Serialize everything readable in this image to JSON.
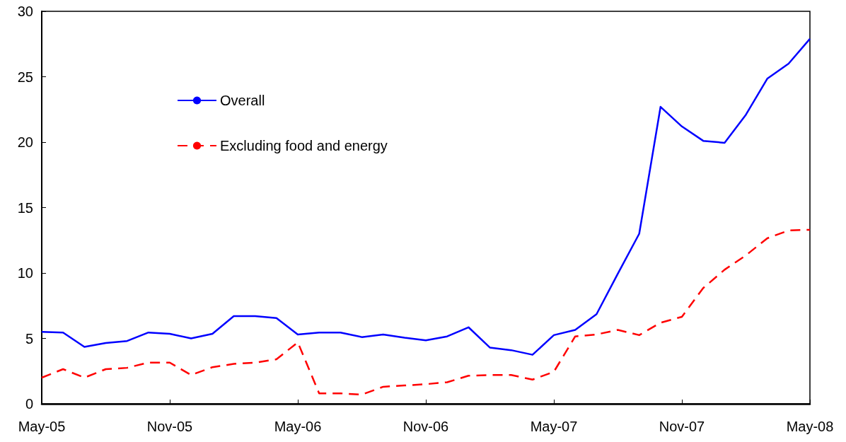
{
  "chart_data": {
    "type": "line",
    "categories": [
      "May-05",
      null,
      null,
      null,
      null,
      null,
      "Nov-05",
      null,
      null,
      null,
      null,
      null,
      "May-06",
      null,
      null,
      null,
      null,
      null,
      "Nov-06",
      null,
      null,
      null,
      null,
      null,
      "May-07",
      null,
      null,
      null,
      null,
      null,
      "Nov-07",
      null,
      null,
      null,
      null,
      null,
      "May-08"
    ],
    "series": [
      {
        "name": "Overall",
        "color": "#0000ff",
        "line_style": "solid",
        "values": [
          5.5,
          5.45,
          4.35,
          4.65,
          4.8,
          5.45,
          5.35,
          5.0,
          5.35,
          6.7,
          6.7,
          6.55,
          5.3,
          5.45,
          5.45,
          5.1,
          5.3,
          5.05,
          4.85,
          5.15,
          5.85,
          4.3,
          4.1,
          3.75,
          5.25,
          5.65,
          6.85,
          9.95,
          13.0,
          22.7,
          21.2,
          20.1,
          19.95,
          22.1,
          24.85,
          26.0,
          27.9
        ]
      },
      {
        "name": "Excluding food and energy",
        "color": "#ff0000",
        "line_style": "dashed",
        "values": [
          2.0,
          2.65,
          2.0,
          2.65,
          2.75,
          3.15,
          3.15,
          2.2,
          2.8,
          3.05,
          3.15,
          3.4,
          4.7,
          0.8,
          0.8,
          0.7,
          1.3,
          1.4,
          1.5,
          1.65,
          2.15,
          2.2,
          2.2,
          1.85,
          2.45,
          5.15,
          5.3,
          5.65,
          5.25,
          6.2,
          6.65,
          8.85,
          10.25,
          11.35,
          12.65,
          13.25,
          13.3
        ]
      }
    ],
    "ylim": [
      0,
      30
    ],
    "yticks": [
      0,
      5,
      10,
      15,
      20,
      25,
      30
    ],
    "grid": false,
    "legend": "top left",
    "marker": "none"
  }
}
